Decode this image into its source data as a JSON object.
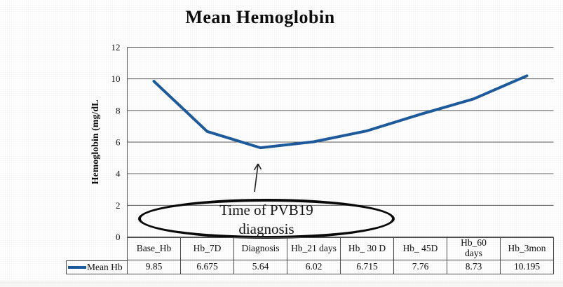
{
  "chart_data": {
    "type": "line",
    "title": "Mean Hemoglobin",
    "xlabel": "",
    "ylabel": "Hemoglobin (mg/dL",
    "categories": [
      "Base_Hb",
      "Hb_7D",
      "Diagnosis",
      "Hb_21 days",
      "Hb_ 30 D",
      "Hb_ 45D",
      "Hb_60 days",
      "Hb_3mon"
    ],
    "header_display": [
      "Base_Hb",
      "Hb_7D",
      "Diagnosis",
      "Hb_21 days",
      "Hb_ 30 D",
      "Hb_ 45D",
      "Hb_60\ndays",
      "Hb_3mon"
    ],
    "series": [
      {
        "name": "Mean Hb",
        "values": [
          9.85,
          6.675,
          5.64,
          6.02,
          6.715,
          7.76,
          8.73,
          10.195
        ]
      }
    ],
    "value_labels": [
      "9.85",
      "6.675",
      "5.64",
      "6.02",
      "6.715",
      "7.76",
      "8.73",
      "10.195"
    ],
    "ylim": [
      0,
      12
    ],
    "ytick_step": 2,
    "yticks": [
      "0",
      "2",
      "4",
      "6",
      "8",
      "10",
      "12"
    ],
    "grid": "horizontal",
    "legend_position": "table-left",
    "line_color": "#1d5a9b",
    "gridline_color": "#595959"
  },
  "annotation": {
    "text": "Time of PVB19 diagnosis",
    "lines": [
      "Time of PVB19",
      "diagnosis"
    ],
    "points_to_category": "Diagnosis"
  }
}
